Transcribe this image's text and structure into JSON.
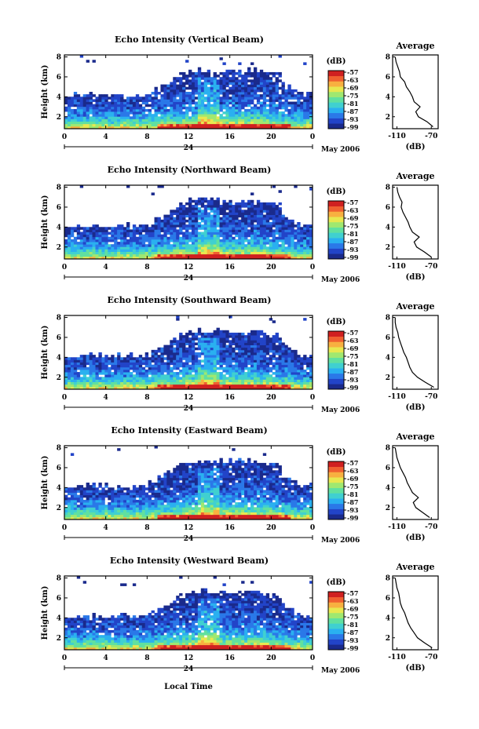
{
  "figure": {
    "bottom_label": "Local Time",
    "date_label": "May 2006",
    "day_label": "24"
  },
  "colorbar": {
    "unit": "(dB)",
    "tick_labels": [
      "-57",
      "-63",
      "-69",
      "-75",
      "-81",
      "-87",
      "-93",
      "-99"
    ],
    "colors": [
      "#1a2a8c",
      "#2244c8",
      "#2a78e8",
      "#2ab0f0",
      "#40d0d0",
      "#60e0a0",
      "#a0e870",
      "#e8e850",
      "#f8b040",
      "#f06030",
      "#d02020"
    ]
  },
  "chart_data": [
    {
      "type": "heatmap",
      "title": "Echo Intensity (Vertical Beam)",
      "ylabel": "Height (km)",
      "xlabel": "Local Time",
      "x_ticks": [
        "0",
        "4",
        "8",
        "12",
        "16",
        "20",
        "0"
      ],
      "y_ticks": [
        "2",
        "4",
        "6",
        "8"
      ],
      "xlim": [
        0,
        24
      ],
      "ylim": [
        0.8,
        8.2
      ],
      "zlim": [
        -99,
        -57
      ],
      "profile": {
        "title": "Average",
        "xlabel": "(dB)",
        "x_ticks": [
          "-110",
          "-70"
        ],
        "y_ticks": [
          "2",
          "4",
          "6",
          "8"
        ],
        "xlim": [
          -115,
          -62
        ],
        "height": [
          1.0,
          1.5,
          2.0,
          2.5,
          3.0,
          3.5,
          4.0,
          4.5,
          5.0,
          5.5,
          6.0,
          6.5,
          7.0,
          7.5,
          8.0
        ],
        "values": [
          -68,
          -75,
          -85,
          -88,
          -83,
          -90,
          -92,
          -95,
          -99,
          -101,
          -106,
          -107,
          -109,
          -111,
          -112
        ]
      }
    },
    {
      "type": "heatmap",
      "title": "Echo Intensity (Northward Beam)",
      "ylabel": "Height (km)",
      "xlabel": "Local Time",
      "x_ticks": [
        "0",
        "4",
        "8",
        "12",
        "16",
        "20",
        "0"
      ],
      "y_ticks": [
        "2",
        "4",
        "6",
        "8"
      ],
      "xlim": [
        0,
        24
      ],
      "ylim": [
        0.8,
        8.2
      ],
      "zlim": [
        -99,
        -57
      ],
      "profile": {
        "title": "Average",
        "xlabel": "(dB)",
        "x_ticks": [
          "-110",
          "-70"
        ],
        "y_ticks": [
          "2",
          "4",
          "6",
          "8"
        ],
        "xlim": [
          -115,
          -62
        ],
        "height": [
          1.0,
          1.5,
          2.0,
          2.5,
          3.0,
          3.5,
          4.0,
          4.5,
          5.0,
          5.5,
          6.0,
          6.5,
          7.0,
          7.5,
          8.0
        ],
        "values": [
          -70,
          -78,
          -87,
          -90,
          -84,
          -92,
          -95,
          -97,
          -100,
          -103,
          -105,
          -104,
          -107,
          -109,
          -110
        ]
      }
    },
    {
      "type": "heatmap",
      "title": "Echo Intensity (Southward Beam)",
      "ylabel": "Height (km)",
      "xlabel": "Local Time",
      "x_ticks": [
        "0",
        "4",
        "8",
        "12",
        "16",
        "20",
        "0"
      ],
      "y_ticks": [
        "2",
        "4",
        "6",
        "8"
      ],
      "xlim": [
        0,
        24
      ],
      "ylim": [
        0.8,
        8.2
      ],
      "zlim": [
        -99,
        -57
      ],
      "profile": {
        "title": "Average",
        "xlabel": "(dB)",
        "x_ticks": [
          "-110",
          "-70"
        ],
        "y_ticks": [
          "2",
          "4",
          "6",
          "8"
        ],
        "xlim": [
          -115,
          -62
        ],
        "height": [
          1.0,
          1.5,
          2.0,
          2.5,
          3.0,
          3.5,
          4.0,
          4.5,
          5.0,
          5.5,
          6.0,
          6.5,
          7.0,
          7.5,
          8.0
        ],
        "values": [
          -67,
          -77,
          -86,
          -92,
          -95,
          -97,
          -99,
          -102,
          -104,
          -106,
          -108,
          -109,
          -111,
          -112,
          -112
        ]
      }
    },
    {
      "type": "heatmap",
      "title": "Echo Intensity (Eastward Beam)",
      "ylabel": "Height (km)",
      "xlabel": "Local Time",
      "x_ticks": [
        "0",
        "4",
        "8",
        "12",
        "16",
        "20",
        "0"
      ],
      "y_ticks": [
        "2",
        "4",
        "6",
        "8"
      ],
      "xlim": [
        0,
        24
      ],
      "ylim": [
        0.8,
        8.2
      ],
      "zlim": [
        -99,
        -57
      ],
      "profile": {
        "title": "Average",
        "xlabel": "(dB)",
        "x_ticks": [
          "-110",
          "-70"
        ],
        "y_ticks": [
          "2",
          "4",
          "6",
          "8"
        ],
        "xlim": [
          -115,
          -62
        ],
        "height": [
          1.0,
          1.5,
          2.0,
          2.5,
          3.0,
          3.5,
          4.0,
          4.5,
          5.0,
          5.5,
          6.0,
          6.5,
          7.0,
          7.5,
          8.0
        ],
        "values": [
          -72,
          -80,
          -88,
          -91,
          -85,
          -92,
          -95,
          -98,
          -100,
          -103,
          -106,
          -108,
          -110,
          -111,
          -112
        ]
      }
    },
    {
      "type": "heatmap",
      "title": "Echo Intensity (Westward Beam)",
      "ylabel": "Height (km)",
      "xlabel": "Local Time",
      "x_ticks": [
        "0",
        "4",
        "8",
        "12",
        "16",
        "20",
        "0"
      ],
      "y_ticks": [
        "2",
        "4",
        "6",
        "8"
      ],
      "xlim": [
        0,
        24
      ],
      "ylim": [
        0.8,
        8.2
      ],
      "zlim": [
        -99,
        -57
      ],
      "profile": {
        "title": "Average",
        "xlabel": "(dB)",
        "x_ticks": [
          "-110",
          "-70"
        ],
        "y_ticks": [
          "2",
          "4",
          "6",
          "8"
        ],
        "xlim": [
          -115,
          -62
        ],
        "height": [
          1.0,
          1.5,
          2.0,
          2.5,
          3.0,
          3.5,
          4.0,
          4.5,
          5.0,
          5.5,
          6.0,
          6.5,
          7.0,
          7.5,
          8.0
        ],
        "values": [
          -69,
          -78,
          -86,
          -90,
          -94,
          -97,
          -99,
          -101,
          -104,
          -106,
          -107,
          -108,
          -110,
          -111,
          -112
        ]
      }
    }
  ]
}
